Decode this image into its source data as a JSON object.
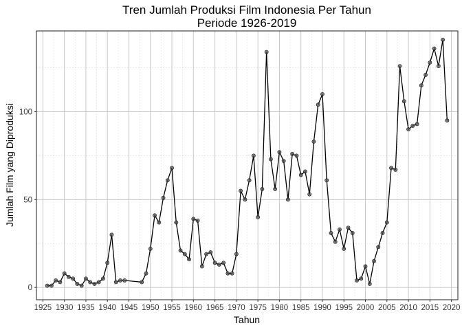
{
  "chart_data": {
    "type": "line",
    "title": "Tren Jumlah Produksi Film Indonesia Per Tahun",
    "subtitle": "Periode 1926-2019",
    "xlabel": "Tahun",
    "ylabel": "Jumlah Film yang Diproduksi",
    "xlim": [
      1923.5,
      2021.5
    ],
    "ylim": [
      -7,
      146
    ],
    "x_ticks": [
      1925,
      1930,
      1935,
      1940,
      1945,
      1950,
      1955,
      1960,
      1965,
      1970,
      1975,
      1980,
      1985,
      1990,
      1995,
      2000,
      2005,
      2010,
      2015,
      2020
    ],
    "y_ticks": [
      0,
      50,
      100
    ],
    "grid": true,
    "line_color": "#000000",
    "point_color": "#555555",
    "series": [
      {
        "x": [
          1926,
          1927,
          1928,
          1929,
          1930,
          1931,
          1932,
          1933,
          1934,
          1935,
          1936,
          1937,
          1938,
          1939,
          1940,
          1941,
          1942,
          1943,
          1944,
          1948,
          1949,
          1950,
          1951,
          1952,
          1953,
          1954,
          1955,
          1956,
          1957,
          1958,
          1959,
          1960,
          1961,
          1962,
          1963,
          1964,
          1965,
          1966,
          1967,
          1968,
          1969,
          1970,
          1971,
          1972,
          1973,
          1974,
          1975,
          1976,
          1977,
          1978,
          1979,
          1980,
          1981,
          1982,
          1983,
          1984,
          1985,
          1986,
          1987,
          1988,
          1989,
          1990,
          1991,
          1992,
          1993,
          1994,
          1995,
          1996,
          1997,
          1998,
          1999,
          2000,
          2001,
          2002,
          2003,
          2004,
          2005,
          2006,
          2007,
          2008,
          2009,
          2010,
          2011,
          2012,
          2013,
          2014,
          2015,
          2016,
          2017,
          2018,
          2019
        ],
        "y": [
          1,
          1,
          4,
          3,
          8,
          6,
          5,
          2,
          1,
          5,
          3,
          2,
          3,
          5,
          14,
          30,
          3,
          4,
          4,
          3,
          8,
          22,
          41,
          37,
          51,
          61,
          68,
          37,
          21,
          19,
          16,
          39,
          38,
          12,
          19,
          20,
          14,
          13,
          14,
          8,
          8,
          19,
          55,
          50,
          61,
          75,
          40,
          56,
          134,
          73,
          56,
          77,
          72,
          50,
          76,
          75,
          64,
          66,
          53,
          83,
          104,
          110,
          61,
          31,
          26,
          33,
          22,
          34,
          31,
          4,
          5,
          12,
          2,
          15,
          23,
          31,
          37,
          68,
          67,
          126,
          106,
          90,
          92,
          93,
          115,
          121,
          128,
          136,
          126,
          141,
          95
        ]
      }
    ]
  }
}
